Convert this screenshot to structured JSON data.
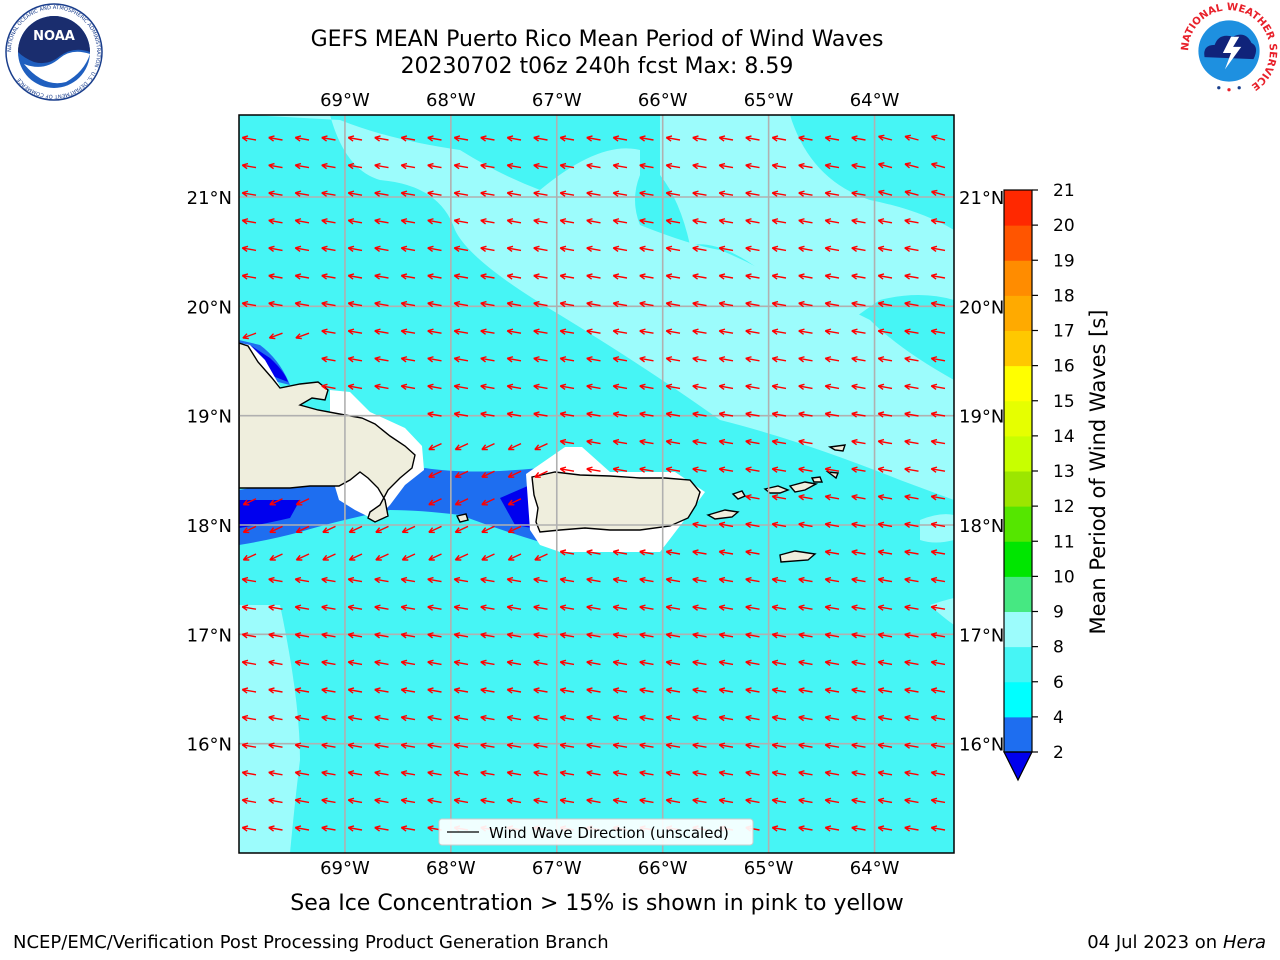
{
  "header": {
    "title_line1": "GEFS MEAN Puerto Rico Mean Period of Wind Waves",
    "title_line2": "20230702 t06z 240h fcst   Max: 8.59"
  },
  "logos": {
    "left": {
      "name": "noaa-logo",
      "text": "NOAA",
      "ring": "NATIONAL OCEANIC AND ATMOSPHERIC ADMINISTRATION · U.S. DEPARTMENT OF COMMERCE"
    },
    "right": {
      "name": "nws-logo",
      "ring": "NATIONAL WEATHER SERVICE"
    }
  },
  "map": {
    "lon_labels": [
      "69°W",
      "68°W",
      "67°W",
      "66°W",
      "65°W",
      "64°W"
    ],
    "lon_values": [
      -69,
      -68,
      -67,
      -66,
      -65,
      -64
    ],
    "lat_labels": [
      "21°N",
      "20°N",
      "19°N",
      "18°N",
      "17°N",
      "16°N"
    ],
    "lat_values": [
      21,
      20,
      19,
      18,
      17,
      16
    ],
    "lon_range": [
      -70.0,
      -63.25
    ],
    "lat_range": [
      15.0,
      21.75
    ],
    "vector_color": "#ff0000",
    "ocean_color": "#46f5f5",
    "land_color": "#efeedd",
    "legend_text": "Wind Wave Direction (unscaled)"
  },
  "colorbar": {
    "label": "Mean Period of Wind Waves [s]",
    "ticks": [
      "2",
      "4",
      "6",
      "8",
      "9",
      "10",
      "11",
      "12",
      "13",
      "14",
      "15",
      "16",
      "17",
      "18",
      "19",
      "20",
      "21"
    ],
    "colors": [
      "#1e6ef0",
      "#00ffff",
      "#46f5f5",
      "#9cfcfc",
      "#46e882",
      "#00e600",
      "#55e600",
      "#9ce600",
      "#c8ff00",
      "#e6ff00",
      "#ffff00",
      "#ffc800",
      "#ffaa00",
      "#ff8c00",
      "#ff5500",
      "#ff2800",
      "#ff0000"
    ],
    "under_color": "#0000ee"
  },
  "footer": {
    "note": "Sea Ice Concentration > 15% is shown in pink to yellow",
    "credit": "NCEP/EMC/Verification Post Processing Product Generation Branch",
    "date": "04 Jul 2023 on ",
    "host": "Hera"
  }
}
